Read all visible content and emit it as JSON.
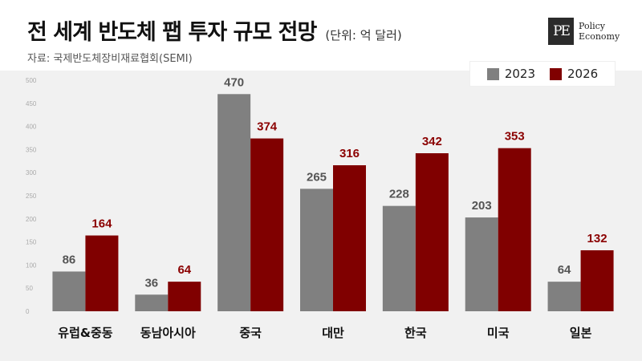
{
  "header": {
    "title": "전 세계 반도체 팹 투자 규모 전망",
    "unit": "(단위: 억 달러)",
    "source": "자료: 국제반도체장비재료협회(SEMI)"
  },
  "brand": {
    "mark": "PE",
    "line1": "Policy",
    "line2": "Economy"
  },
  "colors": {
    "s2023": "#808080",
    "s2026": "#800000",
    "label2023": "#555555",
    "label2026": "#8b0000",
    "background": "#f1f1f1"
  },
  "chart_data": {
    "type": "bar",
    "title": "전 세계 반도체 팹 투자 규모 전망",
    "subtitle": "(단위: 억 달러)",
    "categories": [
      "유럽&중동",
      "동남아시아",
      "중국",
      "대만",
      "한국",
      "미국",
      "일본"
    ],
    "series": [
      {
        "name": "2023",
        "values": [
          86,
          36,
          470,
          265,
          228,
          203,
          64
        ]
      },
      {
        "name": "2026",
        "values": [
          164,
          64,
          374,
          316,
          342,
          353,
          132
        ]
      }
    ],
    "ylim": [
      0,
      500
    ],
    "yticks": [
      "0",
      "50",
      "100",
      "150",
      "200",
      "250",
      "300",
      "350",
      "400",
      "450",
      "500"
    ],
    "legend_position": "top-right",
    "grid": false
  }
}
